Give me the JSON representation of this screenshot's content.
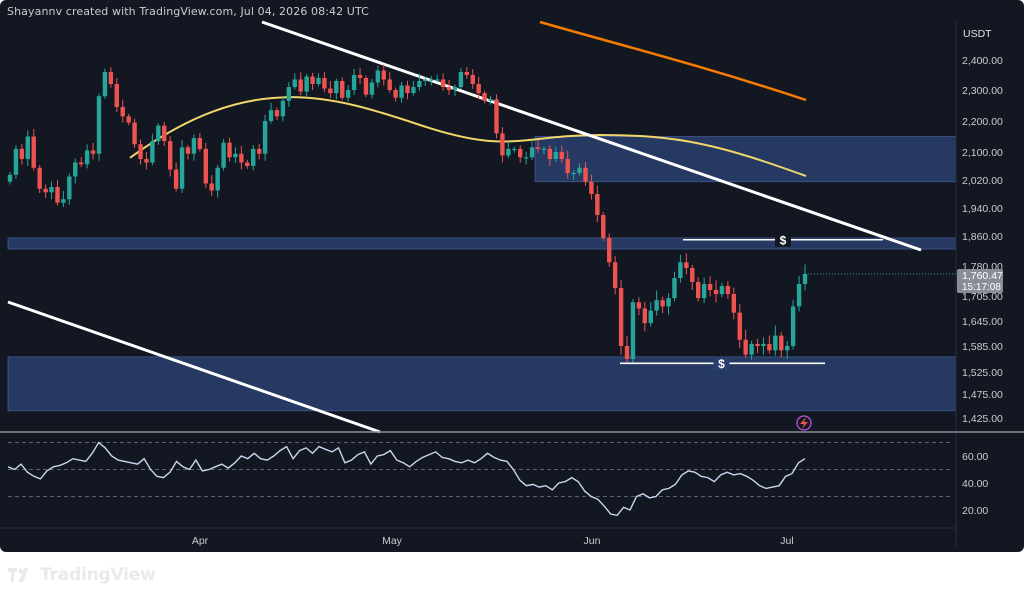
{
  "caption": "Shayannv created with TradingView.com, Jul 04, 2026 08:42 UTC",
  "brand": {
    "name": "TradingView",
    "icon": "tradingview-logo-icon"
  },
  "colors": {
    "background": "#131722",
    "bull": "#26a69a",
    "bear": "#ef5350",
    "ma_short": "#f0d66a",
    "ma_long": "#f57c00",
    "zone": "#2a3f6f",
    "trendline": "#ffffff",
    "rsi": "#c8d6f0"
  },
  "chart_data": [
    {
      "type": "candlestick",
      "title": "",
      "currency_label": "USDT",
      "x_ticks": [
        "Apr",
        "May",
        "Jun",
        "Jul"
      ],
      "y_ticks": [
        2400,
        2300,
        2200,
        2100,
        2020,
        1940,
        1860,
        1780,
        1705,
        1645,
        1585,
        1525,
        1475,
        1425
      ],
      "y_tick_labels": [
        "2,400.00",
        "2,300.00",
        "2,200.00",
        "2,100.00",
        "2,020.00",
        "1,940.00",
        "1,860.00",
        "1,780.00",
        "1,705.00",
        "1,645.00",
        "1,585.00",
        "1,525.00",
        "1,475.00",
        "1,425.00"
      ],
      "last_price_label": "1,760.47",
      "countdown_label": "15:17:08",
      "date_range": [
        "2026-03-01",
        "2026-07-04"
      ],
      "ohlc_close": [
        2035,
        2110,
        2080,
        2150,
        2055,
        1995,
        1985,
        2000,
        1955,
        1965,
        2030,
        2070,
        2065,
        2105,
        2095,
        2280,
        2360,
        2320,
        2245,
        2215,
        2195,
        2125,
        2080,
        2070,
        2135,
        2185,
        2135,
        2050,
        1995,
        2115,
        2095,
        2145,
        2110,
        2010,
        1990,
        2055,
        2130,
        2085,
        2095,
        2070,
        2060,
        2110,
        2095,
        2200,
        2235,
        2215,
        2265,
        2310,
        2335,
        2295,
        2345,
        2320,
        2340,
        2305,
        2290,
        2330,
        2275,
        2300,
        2350,
        2340,
        2285,
        2325,
        2365,
        2335,
        2300,
        2275,
        2315,
        2290,
        2310,
        2330,
        2335,
        2335,
        2335,
        2310,
        2300,
        2310,
        2360,
        2350,
        2320,
        2290,
        2265,
        2270,
        2160,
        2090,
        2110,
        2110,
        2085,
        2085,
        2115,
        2110,
        2110,
        2080,
        2100,
        2080,
        2040,
        2040,
        2055,
        2015,
        1980,
        1920,
        1855,
        1790,
        1725,
        1585,
        1555,
        1690,
        1675,
        1640,
        1670,
        1695,
        1680,
        1700,
        1750,
        1790,
        1775,
        1740,
        1700,
        1735,
        1720,
        1710,
        1730,
        1710,
        1665,
        1600,
        1565,
        1590,
        1585,
        1590,
        1575,
        1610,
        1575,
        1585,
        1680,
        1735,
        1760
      ],
      "ma_short": {
        "start": 2265,
        "mid": 2125,
        "end": 2030
      },
      "ma_long": {
        "start": 2450,
        "end": 2265
      },
      "zones": [
        {
          "from": 2015,
          "to": 2150
        },
        {
          "from": 1825,
          "to": 1855
        },
        {
          "from": 1440,
          "to": 1560
        }
      ],
      "liquidity_levels": [
        {
          "label": "$",
          "price": 1850
        },
        {
          "label": "$",
          "price": 1545
        }
      ]
    },
    {
      "type": "line",
      "title": "",
      "y_ticks": [
        60,
        40,
        20
      ],
      "y_tick_labels": [
        "60.00",
        "40.00",
        "20.00"
      ],
      "bands": [
        70,
        50,
        30
      ],
      "values": [
        52,
        50,
        54,
        48,
        45,
        43,
        49,
        52,
        53,
        55,
        58,
        57,
        56,
        62,
        70,
        66,
        60,
        57,
        56,
        55,
        54,
        58,
        50,
        45,
        44,
        48,
        56,
        52,
        50,
        57,
        49,
        50,
        52,
        54,
        51,
        55,
        60,
        58,
        62,
        58,
        57,
        60,
        64,
        67,
        58,
        64,
        66,
        62,
        67,
        65,
        63,
        66,
        55,
        57,
        61,
        63,
        54,
        60,
        61,
        64,
        57,
        55,
        52,
        56,
        59,
        61,
        63,
        59,
        58,
        56,
        55,
        57,
        55,
        58,
        62,
        59,
        57,
        56,
        50,
        42,
        38,
        39,
        37,
        38,
        35,
        40,
        41,
        44,
        41,
        34,
        30,
        28,
        23,
        17,
        16,
        22,
        20,
        30,
        32,
        29,
        30,
        35,
        36,
        39,
        46,
        49,
        48,
        45,
        44,
        41,
        46,
        48,
        46,
        47,
        45,
        42,
        38,
        36,
        37,
        38,
        45,
        47,
        55,
        58
      ]
    }
  ]
}
